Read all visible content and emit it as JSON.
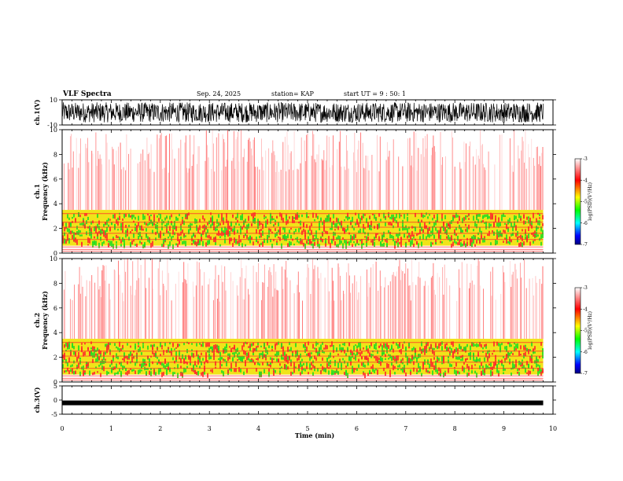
{
  "header": {
    "title": "VLF Spectra",
    "date": "Sep. 24, 2025",
    "station": "station= KAP",
    "start": "start UT =  9 : 50: 1"
  },
  "chart_data": [
    {
      "type": "line",
      "name": "ch1-waveform",
      "ylabel": "ch.1(V)",
      "ylim": [
        -10,
        10
      ],
      "yticks": [
        10,
        -10
      ],
      "xlim": [
        0,
        10
      ],
      "description_values": "dense noise waveform spanning roughly -8 to 8 V"
    },
    {
      "type": "heatmap",
      "name": "ch1-spectrogram",
      "ylabel": "ch.1\nFrequency (kHz)",
      "ylabel_lines": [
        "ch.1",
        "Frequency  (kHz)"
      ],
      "ylim": [
        0,
        10
      ],
      "yticks": [
        0,
        2,
        4,
        6,
        8,
        10
      ],
      "xlim": [
        0,
        10
      ],
      "colorbar": {
        "label": "log(PSD)(V²/Hz)",
        "range": [
          -7,
          -3
        ],
        "ticks": [
          -3,
          -4,
          -5,
          -6,
          -7
        ]
      }
    },
    {
      "type": "heatmap",
      "name": "ch2-spectrogram",
      "ylabel_lines": [
        "ch.2",
        "Frequency  (kHz)"
      ],
      "ylim": [
        0,
        10
      ],
      "yticks": [
        0,
        2,
        4,
        6,
        8,
        10
      ],
      "xlim": [
        0,
        10
      ],
      "colorbar": {
        "label": "log(PSD)(V²/Hz)",
        "range": [
          -7,
          -3
        ],
        "ticks": [
          -3,
          -4,
          -5,
          -6,
          -7
        ]
      }
    },
    {
      "type": "line",
      "name": "ch3-waveform",
      "ylabel": "ch.3(V)",
      "ylim": [
        -5,
        5
      ],
      "yticks": [
        5,
        0,
        -5
      ],
      "xlim": [
        0,
        10
      ],
      "data_end_min": 9.8,
      "level": -1
    }
  ],
  "xaxis": {
    "label": "Time  (min)",
    "ticks": [
      "0",
      "1",
      "2",
      "3",
      "4",
      "5",
      "6",
      "7",
      "8",
      "9",
      "10"
    ]
  },
  "colors": {
    "red": "#ff2a2a",
    "yellow": "#f0e000",
    "green": "#22dd22",
    "black": "#000000"
  }
}
